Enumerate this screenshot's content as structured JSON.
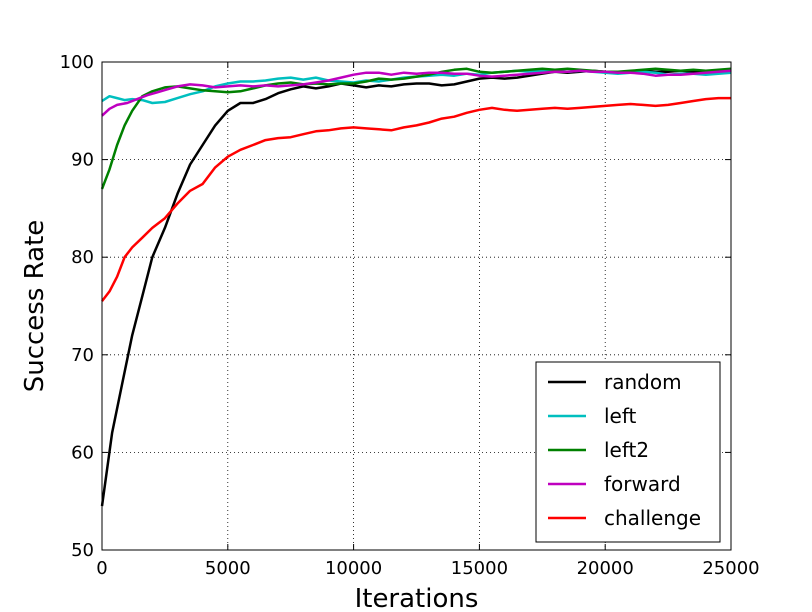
{
  "chart_data": {
    "type": "line",
    "title": "",
    "xlabel": "Iterations",
    "ylabel": "Success Rate",
    "xlim": [
      0,
      25000
    ],
    "ylim": [
      50,
      100
    ],
    "xticks": [
      0,
      5000,
      10000,
      15000,
      20000,
      25000
    ],
    "yticks": [
      50,
      60,
      70,
      80,
      90,
      100
    ],
    "grid": true,
    "legend_position": "lower-right",
    "series": [
      {
        "name": "random",
        "color": "#000000",
        "points": [
          [
            0,
            54.5
          ],
          [
            400,
            62
          ],
          [
            800,
            67
          ],
          [
            1200,
            72
          ],
          [
            1600,
            76
          ],
          [
            2000,
            80
          ],
          [
            2500,
            83
          ],
          [
            3000,
            86.5
          ],
          [
            3500,
            89.5
          ],
          [
            4000,
            91.5
          ],
          [
            4500,
            93.5
          ],
          [
            5000,
            95
          ],
          [
            5500,
            95.8
          ],
          [
            6000,
            95.8
          ],
          [
            6500,
            96.2
          ],
          [
            7000,
            96.8
          ],
          [
            7500,
            97.2
          ],
          [
            8000,
            97.5
          ],
          [
            8500,
            97.3
          ],
          [
            9000,
            97.5
          ],
          [
            9500,
            97.8
          ],
          [
            10000,
            97.6
          ],
          [
            10500,
            97.4
          ],
          [
            11000,
            97.6
          ],
          [
            11500,
            97.5
          ],
          [
            12000,
            97.7
          ],
          [
            12500,
            97.8
          ],
          [
            13000,
            97.8
          ],
          [
            13500,
            97.6
          ],
          [
            14000,
            97.7
          ],
          [
            14500,
            98
          ],
          [
            15000,
            98.3
          ],
          [
            15500,
            98.4
          ],
          [
            16000,
            98.3
          ],
          [
            16500,
            98.4
          ],
          [
            17000,
            98.6
          ],
          [
            17500,
            98.8
          ],
          [
            18000,
            99
          ],
          [
            18500,
            98.9
          ],
          [
            19000,
            99
          ],
          [
            19500,
            99.1
          ],
          [
            20000,
            99
          ],
          [
            20500,
            99
          ],
          [
            21000,
            99
          ],
          [
            21500,
            99.1
          ],
          [
            22000,
            99
          ],
          [
            22500,
            99
          ],
          [
            23000,
            99.1
          ],
          [
            23500,
            99
          ],
          [
            24000,
            99
          ],
          [
            24500,
            99.1
          ],
          [
            25000,
            99.1
          ]
        ]
      },
      {
        "name": "left",
        "color": "#00bfbf",
        "points": [
          [
            0,
            96
          ],
          [
            300,
            96.5
          ],
          [
            600,
            96.3
          ],
          [
            900,
            96.1
          ],
          [
            1200,
            96.2
          ],
          [
            1600,
            96.1
          ],
          [
            2000,
            95.8
          ],
          [
            2500,
            95.9
          ],
          [
            3000,
            96.3
          ],
          [
            3500,
            96.7
          ],
          [
            4000,
            97
          ],
          [
            4500,
            97.5
          ],
          [
            5000,
            97.8
          ],
          [
            5500,
            98
          ],
          [
            6000,
            98
          ],
          [
            6500,
            98.1
          ],
          [
            7000,
            98.3
          ],
          [
            7500,
            98.4
          ],
          [
            8000,
            98.2
          ],
          [
            8500,
            98.4
          ],
          [
            9000,
            98.1
          ],
          [
            9500,
            98
          ],
          [
            10000,
            97.9
          ],
          [
            10500,
            98.1
          ],
          [
            11000,
            98
          ],
          [
            11500,
            98.2
          ],
          [
            12000,
            98.4
          ],
          [
            12500,
            98.5
          ],
          [
            13000,
            98.6
          ],
          [
            13500,
            98.7
          ],
          [
            14000,
            98.6
          ],
          [
            14500,
            98.8
          ],
          [
            15000,
            98.7
          ],
          [
            15500,
            98.9
          ],
          [
            16000,
            99
          ],
          [
            16500,
            99.1
          ],
          [
            17000,
            99
          ],
          [
            17500,
            99.1
          ],
          [
            18000,
            99.2
          ],
          [
            18500,
            99
          ],
          [
            19000,
            99.1
          ],
          [
            19500,
            99
          ],
          [
            20000,
            98.9
          ],
          [
            20500,
            98.8
          ],
          [
            21000,
            98.9
          ],
          [
            21500,
            99
          ],
          [
            22000,
            98.9
          ],
          [
            22500,
            98.7
          ],
          [
            23000,
            98.8
          ],
          [
            23500,
            98.8
          ],
          [
            24000,
            98.7
          ],
          [
            24500,
            98.8
          ],
          [
            25000,
            98.9
          ]
        ]
      },
      {
        "name": "left2",
        "color": "#008000",
        "points": [
          [
            0,
            87
          ],
          [
            300,
            89
          ],
          [
            600,
            91.5
          ],
          [
            900,
            93.5
          ],
          [
            1200,
            95
          ],
          [
            1600,
            96.5
          ],
          [
            2000,
            97
          ],
          [
            2500,
            97.4
          ],
          [
            3000,
            97.5
          ],
          [
            3500,
            97.3
          ],
          [
            4000,
            97.1
          ],
          [
            4500,
            97
          ],
          [
            5000,
            96.9
          ],
          [
            5500,
            97
          ],
          [
            6000,
            97.3
          ],
          [
            6500,
            97.6
          ],
          [
            7000,
            97.8
          ],
          [
            7500,
            97.9
          ],
          [
            8000,
            97.7
          ],
          [
            8500,
            97.8
          ],
          [
            9000,
            97.7
          ],
          [
            9500,
            97.8
          ],
          [
            10000,
            97.8
          ],
          [
            10500,
            98
          ],
          [
            11000,
            98.3
          ],
          [
            11500,
            98.2
          ],
          [
            12000,
            98.3
          ],
          [
            12500,
            98.5
          ],
          [
            13000,
            98.7
          ],
          [
            13500,
            99
          ],
          [
            14000,
            99.2
          ],
          [
            14500,
            99.3
          ],
          [
            15000,
            99
          ],
          [
            15500,
            98.9
          ],
          [
            16000,
            99
          ],
          [
            16500,
            99.1
          ],
          [
            17000,
            99.2
          ],
          [
            17500,
            99.3
          ],
          [
            18000,
            99.2
          ],
          [
            18500,
            99.3
          ],
          [
            19000,
            99.2
          ],
          [
            19500,
            99.1
          ],
          [
            20000,
            99
          ],
          [
            20500,
            99
          ],
          [
            21000,
            99.1
          ],
          [
            21500,
            99.2
          ],
          [
            22000,
            99.3
          ],
          [
            22500,
            99.2
          ],
          [
            23000,
            99.1
          ],
          [
            23500,
            99.2
          ],
          [
            24000,
            99.1
          ],
          [
            24500,
            99.2
          ],
          [
            25000,
            99.3
          ]
        ]
      },
      {
        "name": "forward",
        "color": "#bf00bf",
        "points": [
          [
            0,
            94.5
          ],
          [
            300,
            95.2
          ],
          [
            600,
            95.6
          ],
          [
            1000,
            95.8
          ],
          [
            1400,
            96.2
          ],
          [
            1800,
            96.6
          ],
          [
            2200,
            96.9
          ],
          [
            2600,
            97.2
          ],
          [
            3000,
            97.5
          ],
          [
            3500,
            97.7
          ],
          [
            4000,
            97.6
          ],
          [
            4500,
            97.4
          ],
          [
            5000,
            97.5
          ],
          [
            5500,
            97.6
          ],
          [
            6000,
            97.5
          ],
          [
            6500,
            97.6
          ],
          [
            7000,
            97.5
          ],
          [
            7500,
            97.6
          ],
          [
            8000,
            97.7
          ],
          [
            8500,
            97.9
          ],
          [
            9000,
            98.1
          ],
          [
            9500,
            98.4
          ],
          [
            10000,
            98.7
          ],
          [
            10500,
            98.9
          ],
          [
            11000,
            98.9
          ],
          [
            11500,
            98.7
          ],
          [
            12000,
            98.9
          ],
          [
            12500,
            98.8
          ],
          [
            13000,
            98.9
          ],
          [
            13500,
            98.9
          ],
          [
            14000,
            98.8
          ],
          [
            14500,
            98.8
          ],
          [
            15000,
            98.6
          ],
          [
            15500,
            98.5
          ],
          [
            16000,
            98.6
          ],
          [
            16500,
            98.7
          ],
          [
            17000,
            98.8
          ],
          [
            17500,
            98.9
          ],
          [
            18000,
            99
          ],
          [
            18500,
            99
          ],
          [
            19000,
            99.1
          ],
          [
            19500,
            99
          ],
          [
            20000,
            99
          ],
          [
            20500,
            98.9
          ],
          [
            21000,
            98.9
          ],
          [
            21500,
            98.8
          ],
          [
            22000,
            98.6
          ],
          [
            22500,
            98.7
          ],
          [
            23000,
            98.7
          ],
          [
            23500,
            98.8
          ],
          [
            24000,
            98.9
          ],
          [
            24500,
            99
          ],
          [
            25000,
            99.1
          ]
        ]
      },
      {
        "name": "challenge",
        "color": "#ff0000",
        "points": [
          [
            0,
            75.5
          ],
          [
            300,
            76.5
          ],
          [
            600,
            78
          ],
          [
            900,
            80
          ],
          [
            1200,
            81
          ],
          [
            1600,
            82
          ],
          [
            2000,
            83
          ],
          [
            2500,
            84
          ],
          [
            3000,
            85.5
          ],
          [
            3500,
            86.8
          ],
          [
            4000,
            87.5
          ],
          [
            4500,
            89.2
          ],
          [
            5000,
            90.3
          ],
          [
            5500,
            91
          ],
          [
            6000,
            91.5
          ],
          [
            6500,
            92
          ],
          [
            7000,
            92.2
          ],
          [
            7500,
            92.3
          ],
          [
            8000,
            92.6
          ],
          [
            8500,
            92.9
          ],
          [
            9000,
            93
          ],
          [
            9500,
            93.2
          ],
          [
            10000,
            93.3
          ],
          [
            10500,
            93.2
          ],
          [
            11000,
            93.1
          ],
          [
            11500,
            93
          ],
          [
            12000,
            93.3
          ],
          [
            12500,
            93.5
          ],
          [
            13000,
            93.8
          ],
          [
            13500,
            94.2
          ],
          [
            14000,
            94.4
          ],
          [
            14500,
            94.8
          ],
          [
            15000,
            95.1
          ],
          [
            15500,
            95.3
          ],
          [
            16000,
            95.1
          ],
          [
            16500,
            95
          ],
          [
            17000,
            95.1
          ],
          [
            17500,
            95.2
          ],
          [
            18000,
            95.3
          ],
          [
            18500,
            95.2
          ],
          [
            19000,
            95.3
          ],
          [
            19500,
            95.4
          ],
          [
            20000,
            95.5
          ],
          [
            20500,
            95.6
          ],
          [
            21000,
            95.7
          ],
          [
            21500,
            95.6
          ],
          [
            22000,
            95.5
          ],
          [
            22500,
            95.6
          ],
          [
            23000,
            95.8
          ],
          [
            23500,
            96
          ],
          [
            24000,
            96.2
          ],
          [
            24500,
            96.3
          ],
          [
            25000,
            96.3
          ]
        ]
      }
    ]
  }
}
